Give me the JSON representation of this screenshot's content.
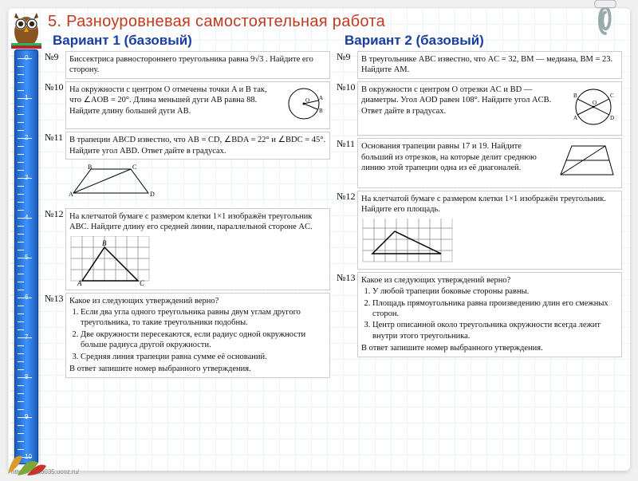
{
  "title": "5. Разноуровневая самостоятельная работа",
  "variant1_heading": "Вариант 1 (базовый)",
  "variant2_heading": "Вариант 2 (базовый)",
  "footnote": "http://linda6035.ucoz.ru/",
  "v1": {
    "t9": {
      "label": "№9",
      "text": "Биссектриса равностороннего треугольника равна 9√3 . Найдите его сторону."
    },
    "t10": {
      "label": "№10",
      "text": "На окружности с центром O отмечены точки A и B так, что ∠AOB = 20°. Длина меньшей дуги AB равна 88. Найдите длину большей дуги AB."
    },
    "t11": {
      "label": "№11",
      "text": "В трапеции ABCD известно, что AB = CD, ∠BDA = 22° и ∠BDC = 45°. Найдите угол ABD. Ответ дайте в градусах."
    },
    "t12": {
      "label": "№12",
      "text": "На клетчатой бумаге с размером клетки 1×1 изображён треугольник ABC. Найдите длину его средней линии, параллельной стороне AC."
    },
    "t13": {
      "label": "№13",
      "text": "Какое из следующих утверждений верно?",
      "opts": [
        "Если два угла одного треугольника равны двум углам другого треугольника, то такие треугольники подобны.",
        "Две окружности пересекаются, если радиус одной окружности больше радиуса другой окружности.",
        "Средняя линия трапеции равна сумме её оснований."
      ],
      "tail": "В ответ запишите номер выбранного утверждения."
    }
  },
  "v2": {
    "t9": {
      "label": "№9",
      "text": "В треугольнике ABC известно, что AC = 32, BM — медиана, BM = 23. Найдите AM."
    },
    "t10": {
      "label": "№10",
      "text": "В окружности с центром O отрезки AC и BD — диаметры. Угол AOD равен 108°. Найдите угол ACB. Ответ дайте в градусах."
    },
    "t11": {
      "label": "№11",
      "text": "Основания трапеции равны 17 и 19. Найдите больший из отрезков, на которые делит среднюю линию этой трапеции одна из её диагоналей."
    },
    "t12": {
      "label": "№12",
      "text": "На клетчатой бумаге с размером клетки 1×1 изображён треугольник. Найдите его площадь."
    },
    "t13": {
      "label": "№13",
      "text": "Какое из следующих утверждений верно?",
      "opts": [
        "У любой трапеции боковые стороны равны.",
        "Площадь прямоугольника равна произведению длин его смежных сторон.",
        "Центр описанной около треугольника окружности всегда лежит внутри этого треугольника."
      ],
      "tail": "В ответ запишите номер выбранного утверждения."
    }
  },
  "figures": {
    "grid_cols": 7,
    "grid_rows": 4,
    "cell": 12,
    "tri_v1_12": {
      "A": [
        1,
        4
      ],
      "B": [
        3,
        1
      ],
      "C": [
        6,
        4
      ]
    },
    "tri_v2_12": {
      "P": [
        [
          1,
          3
        ],
        [
          3,
          1
        ],
        [
          7,
          3
        ]
      ]
    },
    "colors": {
      "line": "#000",
      "grid": "#888"
    }
  }
}
